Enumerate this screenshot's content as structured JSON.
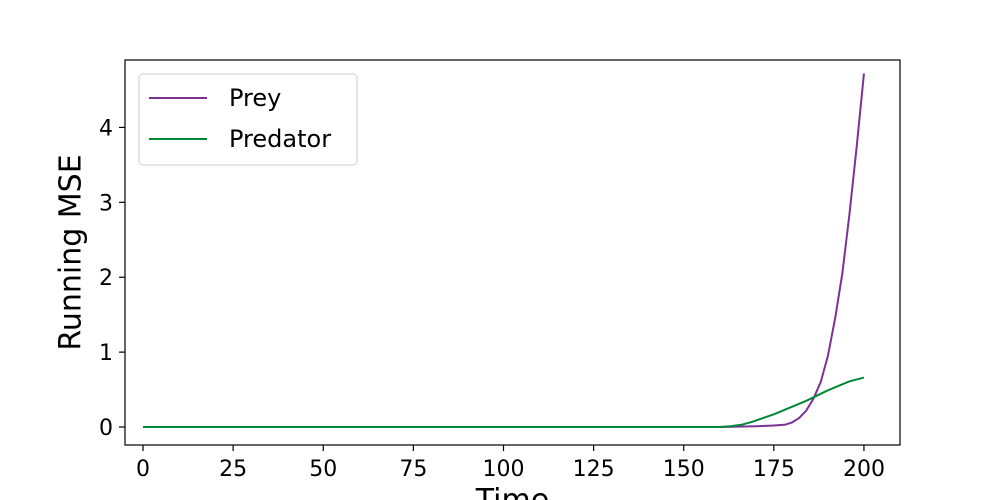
{
  "chart_data": {
    "type": "line",
    "title": "",
    "xlabel": "Time",
    "ylabel": "Running MSE",
    "xlim": [
      -5,
      210
    ],
    "ylim": [
      -0.24,
      4.9
    ],
    "xticks": [
      0,
      25,
      50,
      75,
      100,
      125,
      150,
      175,
      200
    ],
    "yticks": [
      0,
      1,
      2,
      3,
      4
    ],
    "grid": false,
    "legend": {
      "position": "top-left"
    },
    "series": [
      {
        "name": "Prey",
        "color": "#7b3294",
        "x": [
          0,
          25,
          50,
          75,
          100,
          125,
          150,
          160,
          165,
          170,
          175,
          178,
          180,
          182,
          184,
          186,
          188,
          190,
          192,
          194,
          196,
          198,
          200
        ],
        "y": [
          0,
          0,
          0,
          0,
          0,
          0,
          0,
          0,
          0.005,
          0.01,
          0.02,
          0.03,
          0.06,
          0.12,
          0.22,
          0.38,
          0.6,
          0.95,
          1.45,
          2.05,
          2.85,
          3.75,
          4.72
        ]
      },
      {
        "name": "Predator",
        "color": "#008837",
        "x": [
          0,
          25,
          50,
          75,
          100,
          125,
          150,
          160,
          163,
          166,
          169,
          172,
          175,
          178,
          181,
          184,
          187,
          190,
          193,
          196,
          200
        ],
        "y": [
          0,
          0,
          0,
          0,
          0,
          0,
          0,
          0,
          0.01,
          0.03,
          0.07,
          0.12,
          0.17,
          0.23,
          0.29,
          0.35,
          0.42,
          0.49,
          0.55,
          0.61,
          0.66
        ]
      }
    ]
  }
}
